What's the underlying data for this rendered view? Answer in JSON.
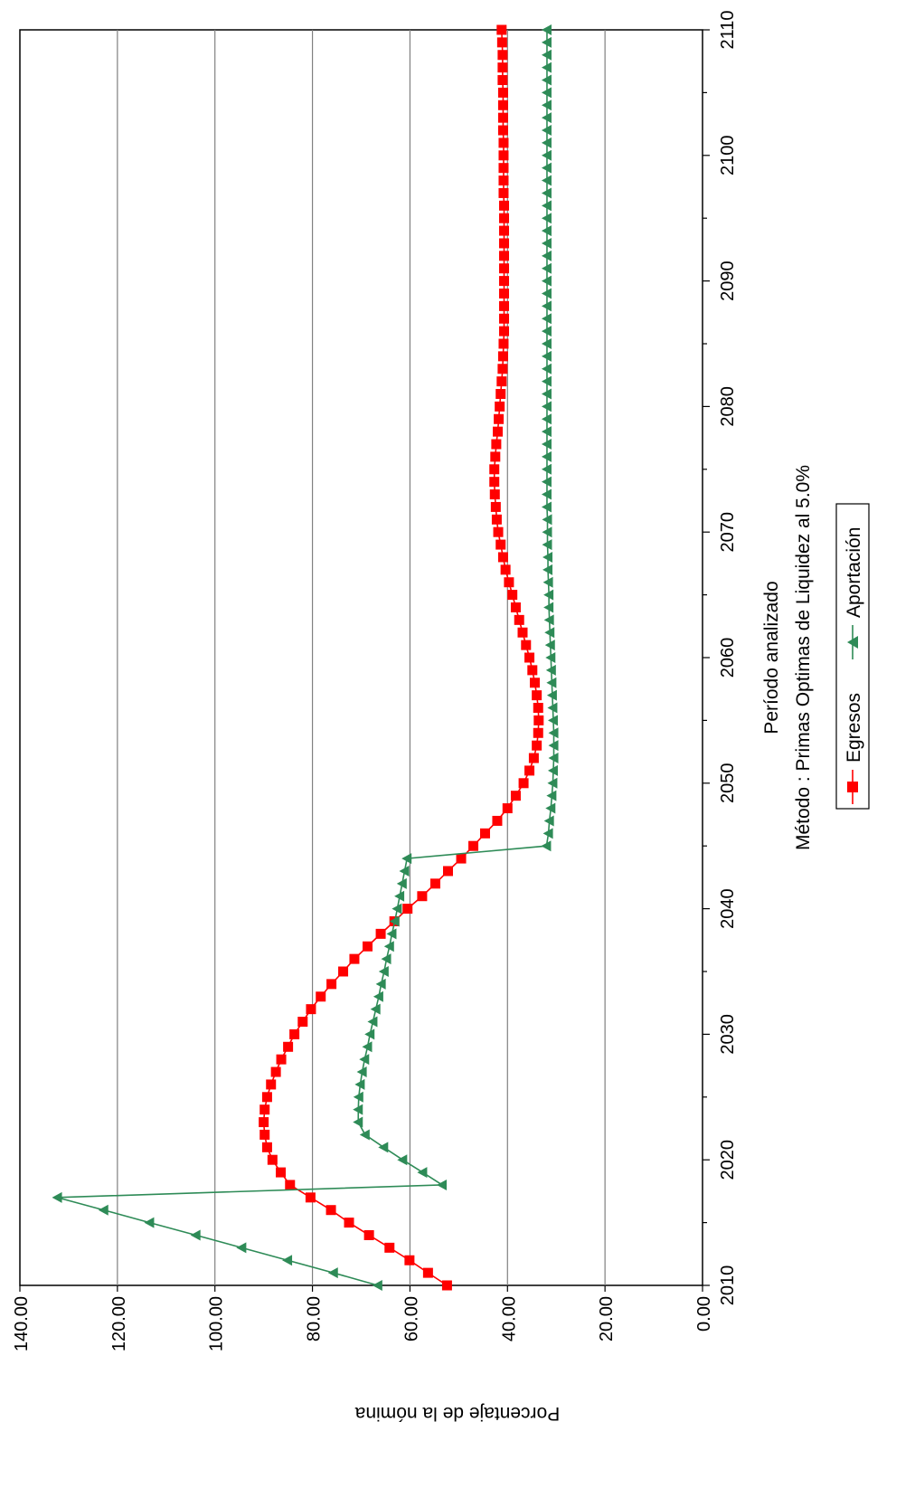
{
  "chart_data": {
    "type": "line",
    "orientation": "rotated-90-clockwise",
    "xlabel": "Período analizado",
    "subtitle": "Método : Primas Optimas de Liquidez al 5.0%",
    "ylabel": "Porcentaje de la nómina",
    "xlim": [
      2010,
      2110
    ],
    "ylim": [
      0,
      140
    ],
    "x_ticks": [
      "2010",
      "2020",
      "2030",
      "2040",
      "2050",
      "2060",
      "2070",
      "2080",
      "2090",
      "2100",
      "2110"
    ],
    "y_ticks": [
      "0.00",
      "20.00",
      "40.00",
      "60.00",
      "80.00",
      "100.00",
      "120.00",
      "140.00"
    ],
    "grid": "horizontal value gridlines",
    "legend_position": "bottom-center",
    "x_years_start": 2010,
    "x_years_end": 2110,
    "series": [
      {
        "name": "Egresos",
        "color": "#ff0000",
        "marker": "square",
        "values": [
          52.4,
          56.3,
          60.1,
          64.2,
          68.4,
          72.5,
          76.2,
          80.4,
          84.6,
          86.5,
          88.2,
          89.3,
          89.8,
          90.0,
          89.8,
          89.3,
          88.5,
          87.5,
          86.4,
          85.0,
          83.7,
          82.0,
          80.3,
          78.3,
          76.1,
          73.7,
          71.4,
          68.7,
          66.0,
          63.2,
          60.5,
          57.5,
          54.8,
          52.2,
          49.5,
          47.0,
          44.6,
          42.1,
          40.0,
          38.3,
          36.7,
          35.5,
          34.6,
          34.0,
          33.7,
          33.6,
          33.7,
          34.0,
          34.4,
          34.9,
          35.5,
          36.2,
          36.9,
          37.6,
          38.3,
          39.0,
          39.7,
          40.4,
          40.9,
          41.4,
          41.9,
          42.2,
          42.4,
          42.6,
          42.7,
          42.7,
          42.5,
          42.3,
          42.0,
          41.8,
          41.6,
          41.4,
          41.2,
          41.0,
          40.9,
          40.8,
          40.7,
          40.7,
          40.7,
          40.7,
          40.7,
          40.7,
          40.7,
          40.7,
          40.7,
          40.7,
          40.7,
          40.8,
          40.8,
          40.8,
          40.8,
          40.8,
          40.9,
          40.9,
          40.9,
          40.9,
          41.0,
          41.0,
          41.0,
          41.1,
          41.2
        ]
      },
      {
        "name": "Aportación",
        "color": "#2e8b57",
        "marker": "triangle",
        "values": [
          66.6,
          75.7,
          85.1,
          94.5,
          103.9,
          113.4,
          122.8,
          132.3,
          53.4,
          57.4,
          61.5,
          65.4,
          69.2,
          70.6,
          70.6,
          70.5,
          70.2,
          69.8,
          69.3,
          68.7,
          68.2,
          67.6,
          67.0,
          66.4,
          65.9,
          65.3,
          64.8,
          64.2,
          63.7,
          63.1,
          62.6,
          62.1,
          61.6,
          61.1,
          60.6,
          32.0,
          31.6,
          31.4,
          31.1,
          30.9,
          30.7,
          30.6,
          30.5,
          30.5,
          30.5,
          30.6,
          30.7,
          30.8,
          30.9,
          31.0,
          31.1,
          31.2,
          31.3,
          31.4,
          31.5,
          31.5,
          31.6,
          31.7,
          31.7,
          31.8,
          31.8,
          31.8,
          31.9,
          31.9,
          31.9,
          31.9,
          31.9,
          31.9,
          31.9,
          31.9,
          31.9,
          31.9,
          31.9,
          31.9,
          31.9,
          31.9,
          31.9,
          31.9,
          31.9,
          31.9,
          31.9,
          31.9,
          31.9,
          31.9,
          31.9,
          31.9,
          31.9,
          31.9,
          31.9,
          31.9,
          31.9,
          31.9,
          31.9,
          31.9,
          31.9,
          31.9,
          31.9,
          31.9,
          31.9,
          31.9,
          31.9
        ]
      }
    ]
  }
}
